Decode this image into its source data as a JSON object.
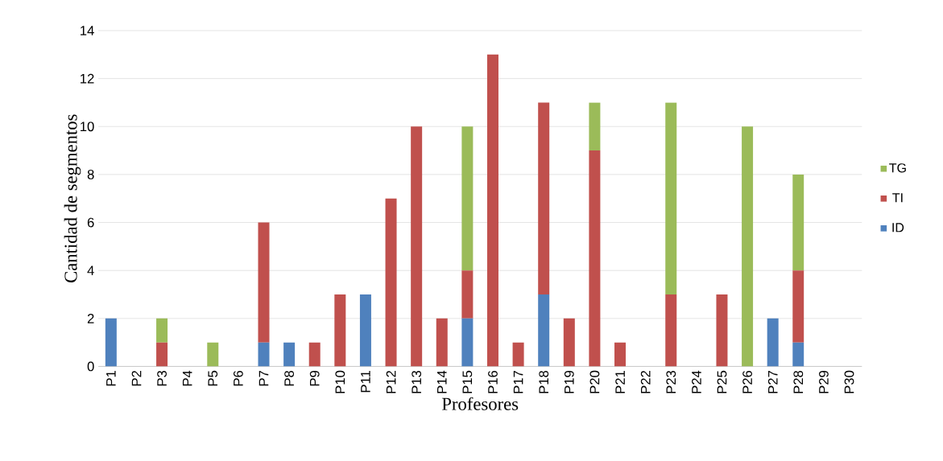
{
  "chart_data": {
    "type": "bar",
    "stacked": true,
    "xlabel": "Profesores",
    "ylabel": "Cantidad de segmentos",
    "categories": [
      "P1",
      "P2",
      "P3",
      "P4",
      "P5",
      "P6",
      "P7",
      "P8",
      "P9",
      "P10",
      "P11",
      "P12",
      "P13",
      "P14",
      "P15",
      "P16",
      "P17",
      "P18",
      "P19",
      "P20",
      "P21",
      "P22",
      "P23",
      "P24",
      "P25",
      "P26",
      "P27",
      "P28",
      "P29",
      "P30"
    ],
    "series": [
      {
        "name": "ID",
        "color": "#4f81bd",
        "values": [
          2,
          0,
          0,
          0,
          0,
          0,
          1,
          1,
          0,
          0,
          3,
          0,
          0,
          0,
          2,
          0,
          0,
          3,
          0,
          0,
          0,
          0,
          0,
          0,
          0,
          0,
          2,
          1,
          0,
          0
        ]
      },
      {
        "name": "TI",
        "color": "#c0504d",
        "values": [
          0,
          0,
          1,
          0,
          0,
          0,
          5,
          0,
          1,
          3,
          0,
          7,
          10,
          2,
          2,
          13,
          1,
          8,
          2,
          9,
          1,
          0,
          3,
          0,
          3,
          0,
          0,
          3,
          0,
          0
        ]
      },
      {
        "name": "TG",
        "color": "#9bbb59",
        "values": [
          0,
          0,
          1,
          0,
          1,
          0,
          0,
          0,
          0,
          0,
          0,
          0,
          0,
          0,
          6,
          0,
          0,
          0,
          0,
          2,
          0,
          0,
          8,
          0,
          0,
          10,
          0,
          4,
          0,
          0
        ]
      }
    ],
    "ylim": [
      0,
      14
    ],
    "yticks": [
      0,
      2,
      4,
      6,
      8,
      10,
      12,
      14
    ],
    "grid": "y",
    "legend": "right"
  }
}
